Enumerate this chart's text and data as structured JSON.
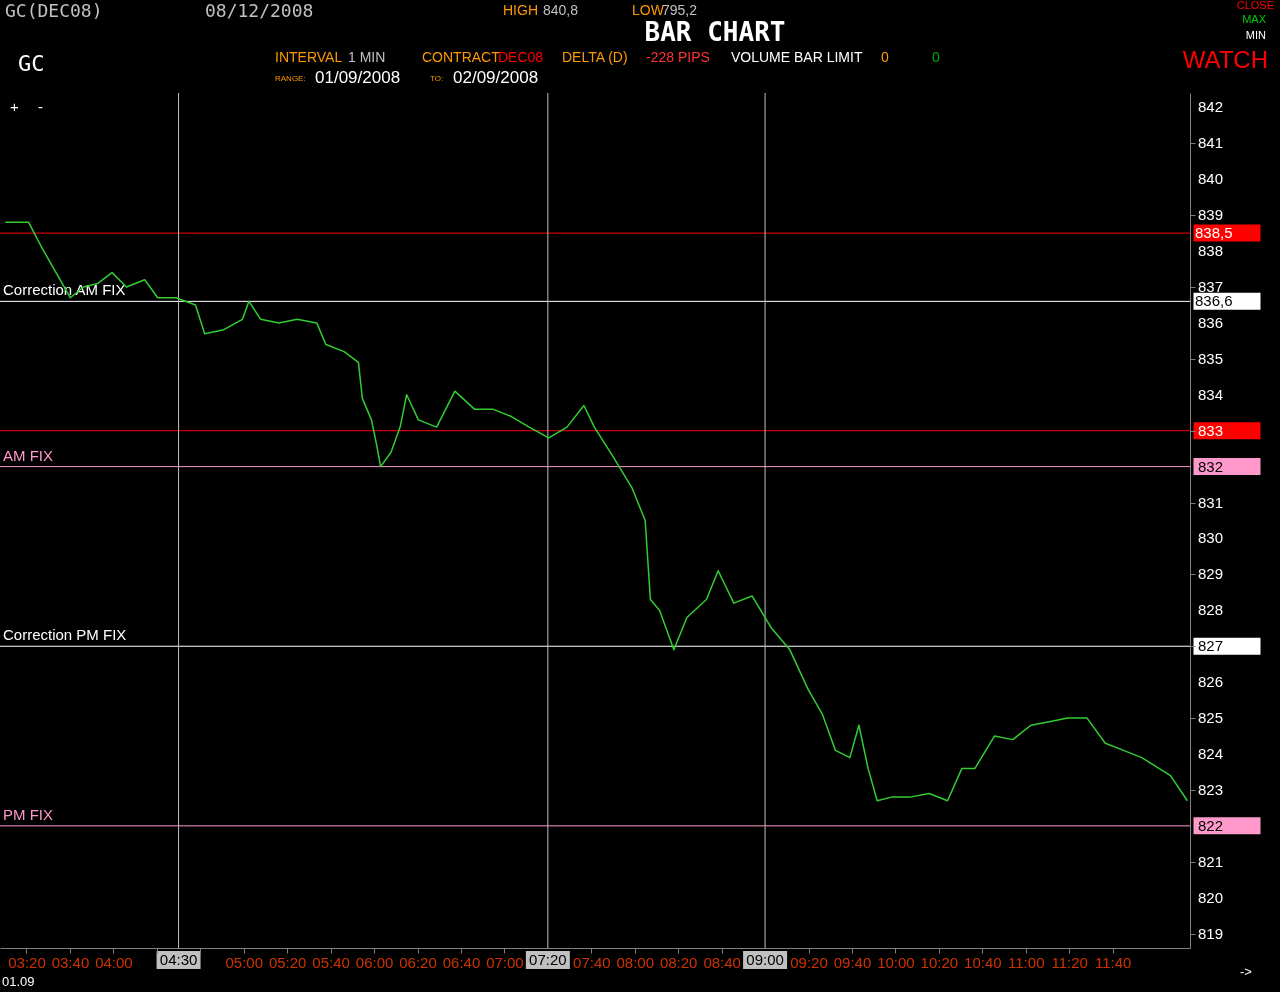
{
  "chart_data": {
    "type": "line",
    "title": "BAR CHART",
    "x": [
      3.17,
      3.35,
      3.45,
      3.56,
      3.67,
      3.77,
      3.88,
      3.99,
      4.1,
      4.24,
      4.34,
      4.48,
      4.63,
      4.7,
      4.84,
      4.99,
      5.04,
      5.13,
      5.27,
      5.41,
      5.56,
      5.63,
      5.77,
      5.88,
      5.91,
      5.98,
      6.02,
      6.05,
      6.13,
      6.2,
      6.25,
      6.34,
      6.48,
      6.62,
      6.77,
      6.91,
      7.05,
      7.19,
      7.34,
      7.48,
      7.61,
      7.69,
      7.83,
      7.98,
      8.08,
      8.12,
      8.19,
      8.3,
      8.4,
      8.55,
      8.64,
      8.76,
      8.9,
      9.05,
      9.19,
      9.33,
      9.44,
      9.54,
      9.65,
      9.72,
      9.79,
      9.86,
      9.97,
      10.11,
      10.26,
      10.4,
      10.51,
      10.61,
      10.76,
      10.9,
      11.04,
      11.18,
      11.32,
      11.47,
      11.61,
      11.75,
      11.89,
      12.11,
      12.24
    ],
    "series": [
      {
        "color": "#33cc33",
        "values": [
          838.8,
          838.8,
          838.1,
          837.4,
          836.7,
          837.0,
          837.1,
          837.4,
          837.0,
          837.2,
          836.7,
          836.7,
          836.5,
          835.7,
          835.8,
          836.1,
          836.6,
          836.1,
          836.0,
          836.1,
          836.0,
          835.4,
          835.2,
          834.9,
          833.9,
          833.3,
          832.6,
          832.0,
          832.4,
          833.1,
          834.0,
          833.3,
          833.1,
          834.1,
          833.6,
          833.6,
          833.4,
          833.1,
          832.8,
          833.1,
          833.7,
          833.1,
          832.3,
          831.4,
          830.5,
          828.3,
          828.0,
          826.9,
          827.8,
          828.3,
          829.1,
          828.2,
          828.4,
          827.5,
          826.9,
          825.8,
          825.1,
          824.1,
          823.9,
          824.8,
          823.6,
          822.7,
          822.8,
          822.8,
          822.9,
          822.7,
          823.6,
          823.6,
          824.5,
          824.4,
          824.8,
          824.9,
          825.0,
          825.0,
          824.3,
          824.1,
          823.9,
          823.4,
          822.7
        ]
      }
    ],
    "xlim": [
      3.13,
      12.26
    ],
    "xticks": [
      {
        "value": 3.3333,
        "label": "03:20"
      },
      {
        "value": 3.6667,
        "label": "03:40"
      },
      {
        "value": 4,
        "label": "04:00"
      },
      {
        "value": 4.3333,
        "label": null
      },
      {
        "value": 4.6667,
        "label": null
      },
      {
        "value": 5,
        "label": "05:00"
      },
      {
        "value": 5.3333,
        "label": "05:20"
      },
      {
        "value": 5.6667,
        "label": "05:40"
      },
      {
        "value": 6,
        "label": "06:00"
      },
      {
        "value": 6.3333,
        "label": "06:20"
      },
      {
        "value": 6.6667,
        "label": "06:40"
      },
      {
        "value": 7,
        "label": "07:00"
      },
      {
        "value": 7.6667,
        "label": "07:40"
      },
      {
        "value": 8,
        "label": "08:00"
      },
      {
        "value": 8.3333,
        "label": "08:20"
      },
      {
        "value": 8.6667,
        "label": "08:40"
      },
      {
        "value": 9.3333,
        "label": "09:20"
      },
      {
        "value": 9.6667,
        "label": "09:40"
      },
      {
        "value": 10,
        "label": "10:00"
      },
      {
        "value": 10.3333,
        "label": "10:20"
      },
      {
        "value": 10.6667,
        "label": "10:40"
      },
      {
        "value": 11,
        "label": "11:00"
      },
      {
        "value": 11.3333,
        "label": "11:20"
      },
      {
        "value": 11.6667,
        "label": "11:40"
      }
    ],
    "ylim": [
      818.6,
      842.4
    ],
    "yticks": [
      819,
      820,
      821,
      822,
      823,
      824,
      825,
      826,
      827,
      828,
      829,
      830,
      831,
      832,
      833,
      834,
      835,
      836,
      837,
      838,
      839,
      840,
      841,
      842
    ],
    "grid": false,
    "ref_lines": [
      {
        "axis": "y",
        "value": 838.5,
        "color": "#ff0000"
      },
      {
        "axis": "y",
        "value": 836.6,
        "label": "Correction AM FIX",
        "color": "#ffffff"
      },
      {
        "axis": "y",
        "value": 833,
        "color": "#ff0000"
      },
      {
        "axis": "y",
        "value": 832,
        "label": "AM FIX",
        "color": "#ff99cc"
      },
      {
        "axis": "y",
        "value": 827,
        "label": "Correction PM FIX",
        "color": "#ffffff"
      },
      {
        "axis": "y",
        "value": 822,
        "label": "PM FIX",
        "color": "#ff99cc"
      },
      {
        "axis": "x",
        "value": 4.5,
        "label": "04:30",
        "color": "#c0c0c0"
      },
      {
        "axis": "x",
        "value": 7.3333,
        "label": "07:20",
        "color": "#c0c0c0"
      },
      {
        "axis": "x",
        "value": 9,
        "label": "09:00",
        "color": "#c0c0c0"
      }
    ],
    "annotations": [
      "GC(DEC08)",
      "08/12/2008",
      "HIGH",
      "840,8",
      "LOW",
      "795,2",
      "CLOSE",
      "MAX",
      "MIN",
      "GC",
      "INTERVAL",
      "1 MIN",
      "CONTRACT",
      "DEC08",
      "DELTA (D)",
      "-228 PIPS",
      "VOLUME BAR LIMIT",
      "0",
      "0",
      "WATCH",
      "RANGE:",
      "01/09/2008",
      "TO:",
      "02/09/2008",
      "+",
      "-",
      "01.09",
      "->",
      "838,5",
      "836,6"
    ]
  }
}
